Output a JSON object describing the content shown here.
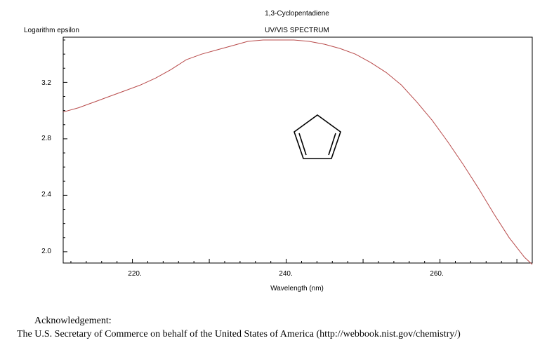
{
  "chart_data": {
    "type": "line",
    "title": "1,3-Cyclopentadiene",
    "subtitle": "UV/VIS SPECTRUM",
    "xlabel": "Wavelength (nm)",
    "ylabel": "Logarithm epsilon",
    "xlim": [
      211,
      272
    ],
    "ylim": [
      1.92,
      3.52
    ],
    "x_ticks": [
      "220.",
      "240.",
      "260."
    ],
    "y_ticks": [
      "2.0",
      "2.4",
      "2.8",
      "3.2"
    ],
    "grid": false,
    "line_color": "#b84a4a",
    "series": [
      {
        "x": [
          211,
          213,
          215,
          217,
          219,
          221,
          223,
          225,
          227,
          229,
          231,
          233,
          235,
          237,
          239,
          241,
          243,
          245,
          247,
          249,
          251,
          253,
          255,
          257,
          259,
          261,
          263,
          265,
          267,
          269,
          271,
          272
        ],
        "y": [
          2.99,
          3.02,
          3.06,
          3.1,
          3.14,
          3.18,
          3.23,
          3.29,
          3.36,
          3.4,
          3.43,
          3.46,
          3.49,
          3.5,
          3.5,
          3.5,
          3.49,
          3.47,
          3.44,
          3.4,
          3.34,
          3.27,
          3.18,
          3.06,
          2.93,
          2.78,
          2.62,
          2.45,
          2.27,
          2.1,
          1.96,
          1.91
        ]
      }
    ]
  },
  "acknowledgement": {
    "heading": "Acknowledgement:",
    "text": "The U.S. Secretary of Commerce on behalf of the United States of America (http://webbook.nist.gov/chemistry/)"
  }
}
